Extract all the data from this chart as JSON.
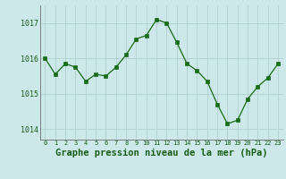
{
  "x": [
    0,
    1,
    2,
    3,
    4,
    5,
    6,
    7,
    8,
    9,
    10,
    11,
    12,
    13,
    14,
    15,
    16,
    17,
    18,
    19,
    20,
    21,
    22,
    23
  ],
  "y": [
    1016.0,
    1015.55,
    1015.85,
    1015.75,
    1015.35,
    1015.55,
    1015.5,
    1015.75,
    1016.1,
    1016.55,
    1016.65,
    1017.1,
    1017.0,
    1016.45,
    1015.85,
    1015.65,
    1015.35,
    1014.7,
    1014.15,
    1014.25,
    1014.85,
    1015.2,
    1015.45,
    1015.85
  ],
  "line_color": "#1a6b1a",
  "marker_color": "#1a6b1a",
  "bg_color": "#cce8e8",
  "grid_color": "#b0d0d0",
  "xlabel": "Graphe pression niveau de la mer (hPa)",
  "xlabel_fontsize": 7.5,
  "tick_label_color": "#1a5c1a",
  "yticks": [
    1014,
    1015,
    1016,
    1017
  ],
  "ylim": [
    1013.7,
    1017.5
  ],
  "xlim": [
    -0.5,
    23.5
  ],
  "xtick_labels": [
    "0",
    "1",
    "2",
    "3",
    "4",
    "5",
    "6",
    "7",
    "8",
    "9",
    "10",
    "11",
    "12",
    "13",
    "14",
    "15",
    "16",
    "17",
    "18",
    "19",
    "20",
    "21",
    "22",
    "23"
  ]
}
